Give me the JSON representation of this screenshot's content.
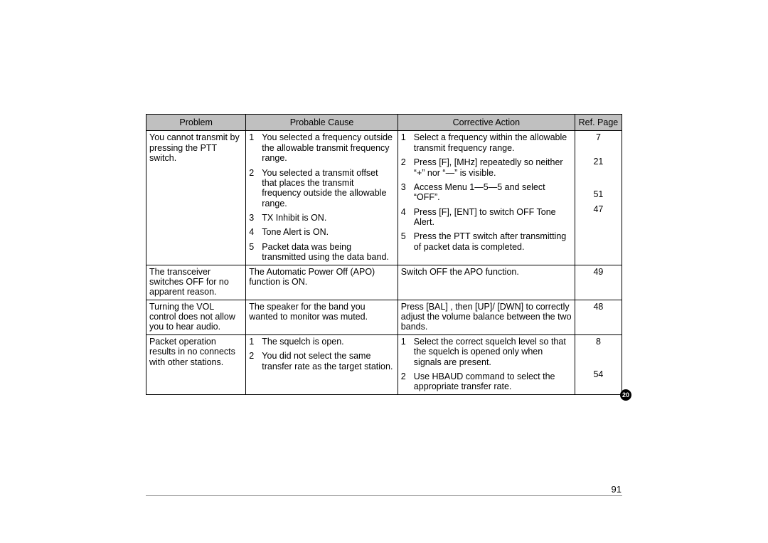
{
  "table": {
    "headers": {
      "problem": "Problem",
      "cause": "Probable Cause",
      "action": "Corrective Action",
      "ref": "Ref. Page"
    },
    "rows": [
      {
        "problem": "You cannot transmit by pressing the PTT switch.",
        "causes": [
          "You selected a frequency outside the allowable transmit frequency range.",
          "You selected a transmit offset that places the transmit frequency outside the allowable range.",
          "TX Inhibit is ON.",
          "Tone Alert is ON.",
          "Packet data was being transmitted using the data band."
        ],
        "actions": [
          "Select a frequency within the allowable transmit frequency range.",
          "Press [F], [MHz]  repeatedly so neither “+” nor “—” is visible.",
          "Access Menu 1—5—5 and select “OFF”.",
          "Press [F], [ENT]  to switch OFF Tone Alert.",
          "Press the PTT switch after transmitting of packet data is completed."
        ],
        "refs": [
          "7",
          "21",
          "51",
          "47",
          ""
        ],
        "ref_heights": [
          "28px",
          "40px",
          "14px",
          "28px",
          "0px"
        ]
      },
      {
        "problem": "The transceiver switches OFF for no apparent reason.",
        "cause_plain": "The Automatic Power Off (APO) function is ON.",
        "action_plain": "Switch OFF the APO function.",
        "ref_plain": "49"
      },
      {
        "problem": "Turning the VOL control does not allow you to hear audio.",
        "cause_plain": "The speaker for the band you wanted to monitor was muted.",
        "action_plain": "Press [BAL] , then [UP]/ [DWN]  to correctly adjust the volume balance between the two bands.",
        "ref_plain": "48"
      },
      {
        "problem": "Packet operation results in no connects with other stations.",
        "causes": [
          "The squelch is open.",
          "You did not select the same transfer rate as the target station."
        ],
        "actions": [
          "Select the correct squelch level so that the squelch is opened only when signals are present.",
          "Use HBAUD command to select the appropriate transfer rate."
        ],
        "refs": [
          "8",
          "54"
        ],
        "ref_heights": [
          "40px",
          "0px"
        ]
      }
    ]
  },
  "chapter_badge": "20",
  "page_number": "91",
  "colors": {
    "header_bg": "#c0c0c0",
    "border": "#000000",
    "text": "#000000",
    "hr": "#9a9a9a",
    "badge_bg": "#000000",
    "badge_fg": "#ffffff"
  }
}
